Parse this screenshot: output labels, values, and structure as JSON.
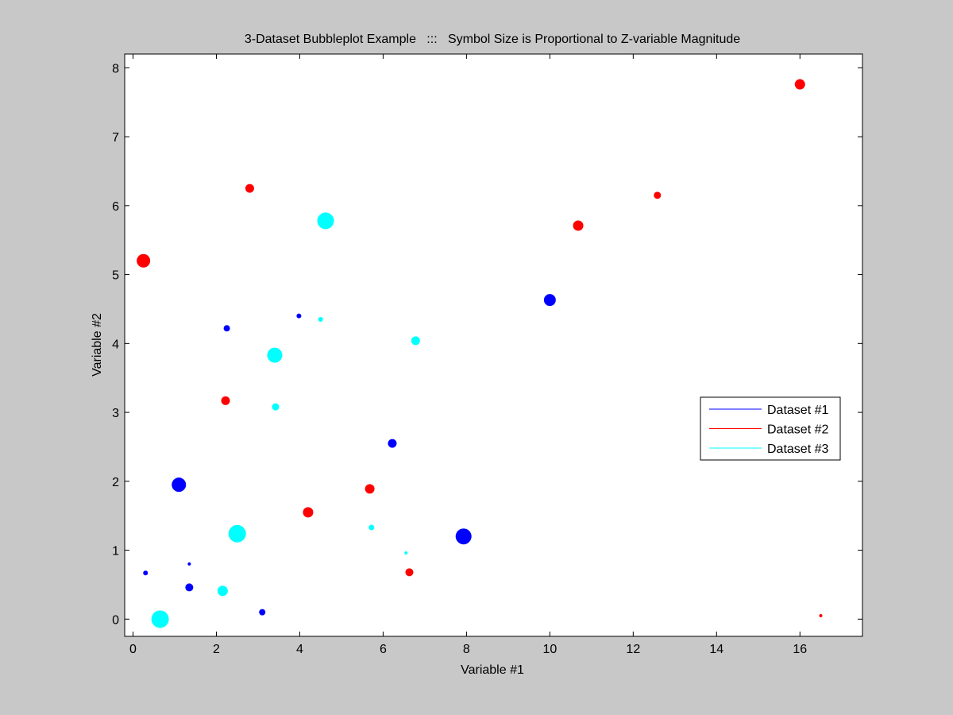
{
  "chart_data": {
    "type": "scatter",
    "title": "3-Dataset Bubbleplot Example   :::   Symbol Size is Proportional to Z-variable Magnitude",
    "xlabel": "Variable #1",
    "ylabel": "Variable #2",
    "xlim": [
      -0.2,
      17.5
    ],
    "ylim": [
      -0.25,
      8.2
    ],
    "xticks": [
      0,
      2,
      4,
      6,
      8,
      10,
      12,
      14,
      16
    ],
    "yticks": [
      0,
      1,
      2,
      3,
      4,
      5,
      6,
      7,
      8
    ],
    "grid": false,
    "legend_position": "right",
    "series": [
      {
        "name": "Dataset #1",
        "color": "#0000ff",
        "points": [
          {
            "x": 0.3,
            "y": 0.67,
            "z": 3
          },
          {
            "x": 1.35,
            "y": 0.8,
            "z": 2
          },
          {
            "x": 1.35,
            "y": 0.46,
            "z": 5
          },
          {
            "x": 1.1,
            "y": 1.95,
            "z": 9
          },
          {
            "x": 2.25,
            "y": 4.22,
            "z": 4
          },
          {
            "x": 3.1,
            "y": 0.1,
            "z": 4
          },
          {
            "x": 3.98,
            "y": 4.4,
            "z": 3
          },
          {
            "x": 6.22,
            "y": 2.55,
            "z": 5.5
          },
          {
            "x": 7.93,
            "y": 1.2,
            "z": 10
          },
          {
            "x": 10.0,
            "y": 4.63,
            "z": 7.5
          }
        ]
      },
      {
        "name": "Dataset #2",
        "color": "#ff0000",
        "points": [
          {
            "x": 0.25,
            "y": 5.2,
            "z": 8.5
          },
          {
            "x": 2.22,
            "y": 3.17,
            "z": 5.5
          },
          {
            "x": 2.8,
            "y": 6.25,
            "z": 5.5
          },
          {
            "x": 4.2,
            "y": 1.55,
            "z": 6.5
          },
          {
            "x": 5.68,
            "y": 1.89,
            "z": 6
          },
          {
            "x": 6.63,
            "y": 0.68,
            "z": 5
          },
          {
            "x": 10.68,
            "y": 5.71,
            "z": 6.5
          },
          {
            "x": 12.58,
            "y": 6.15,
            "z": 4.5
          },
          {
            "x": 16.0,
            "y": 7.76,
            "z": 6.5
          },
          {
            "x": 16.5,
            "y": 0.05,
            "z": 2
          }
        ]
      },
      {
        "name": "Dataset #3",
        "color": "#00ffff",
        "points": [
          {
            "x": 0.65,
            "y": 0.0,
            "z": 11
          },
          {
            "x": 2.15,
            "y": 0.41,
            "z": 6.5
          },
          {
            "x": 2.5,
            "y": 1.24,
            "z": 11
          },
          {
            "x": 3.4,
            "y": 3.83,
            "z": 9.5
          },
          {
            "x": 3.42,
            "y": 3.08,
            "z": 4.5
          },
          {
            "x": 4.5,
            "y": 4.35,
            "z": 3
          },
          {
            "x": 4.62,
            "y": 5.78,
            "z": 10.5
          },
          {
            "x": 5.72,
            "y": 1.33,
            "z": 3.5
          },
          {
            "x": 6.55,
            "y": 0.96,
            "z": 2
          },
          {
            "x": 6.78,
            "y": 4.04,
            "z": 5.5
          }
        ]
      }
    ]
  }
}
